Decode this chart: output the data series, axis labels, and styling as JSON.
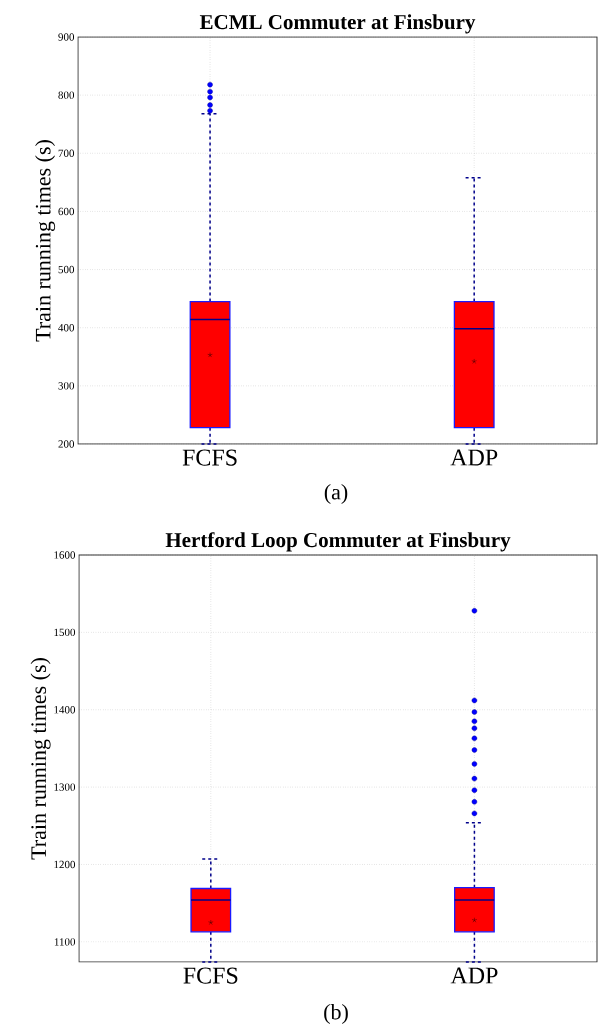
{
  "chart_data": [
    {
      "type": "box",
      "title": "ECML Commuter at Finsbury",
      "ylabel": "Train running times (s)",
      "categories": [
        "FCFS",
        "ADP"
      ],
      "ylim": [
        200,
        900
      ],
      "yticks": [
        200,
        300,
        400,
        500,
        600,
        700,
        800,
        900
      ],
      "grid": true,
      "color": "#ff0000",
      "annotations": [
        "(a)"
      ],
      "boxes": [
        {
          "low": 200,
          "q1": 228,
          "median": 414,
          "q3": 445,
          "high": 768,
          "mean": 353,
          "outliers": [
            773,
            783,
            796,
            806,
            818
          ]
        },
        {
          "low": 200,
          "q1": 228,
          "median": 398,
          "q3": 445,
          "high": 658,
          "mean": 342
        }
      ]
    },
    {
      "type": "box",
      "title": "Hertford Loop Commuter at Finsbury",
      "ylabel": "Train running times (s)",
      "categories": [
        "FCFS",
        "ADP"
      ],
      "ylim": [
        1074,
        1600
      ],
      "yticks": [
        1100,
        1200,
        1300,
        1400,
        1500,
        1600
      ],
      "grid": true,
      "color": "#ff0000",
      "annotations": [
        "(b)"
      ],
      "boxes": [
        {
          "low": 1074,
          "q1": 1113,
          "median": 1154,
          "q3": 1169,
          "high": 1207,
          "mean": 1125
        },
        {
          "low": 1074,
          "q1": 1113,
          "median": 1154,
          "q3": 1170,
          "high": 1254,
          "mean": 1128,
          "outliers": [
            1266,
            1281,
            1296,
            1311,
            1330,
            1348,
            1363,
            1376,
            1385,
            1397,
            1412,
            1528
          ]
        }
      ]
    }
  ]
}
